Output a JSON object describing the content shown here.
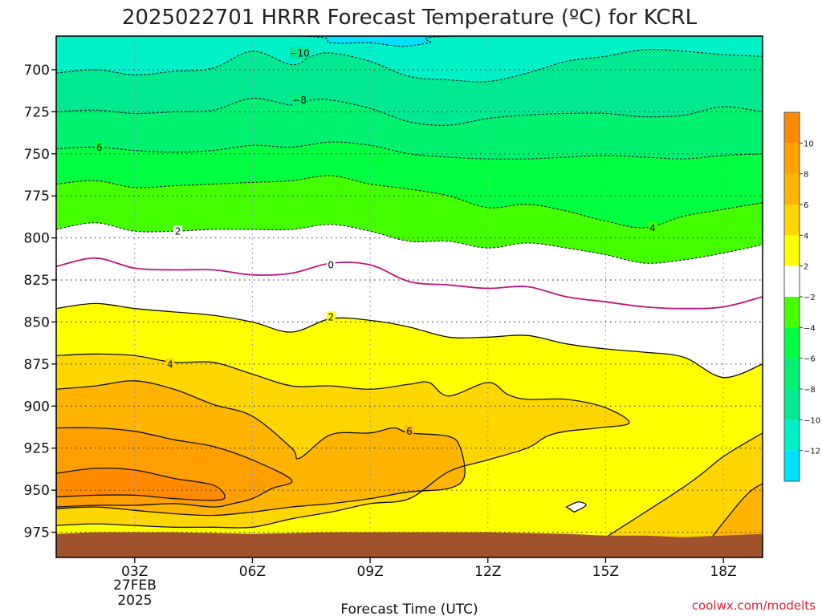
{
  "chart_data": {
    "type": "heatmap",
    "title": "2025022701 HRRR Forecast Temperature (ºC) for KCRL",
    "xlabel": "Forecast Time (UTC)",
    "ylabel": "",
    "x_ticks": [
      "03Z",
      "06Z",
      "09Z",
      "12Z",
      "15Z",
      "18Z"
    ],
    "x_date_label": [
      "27FEB",
      "2025"
    ],
    "y_ticks": [
      "700",
      "725",
      "750",
      "775",
      "800",
      "825",
      "850",
      "875",
      "900",
      "925",
      "950",
      "975"
    ],
    "y_range_hPa": [
      680,
      990
    ],
    "x_range_hours": [
      1,
      19
    ],
    "y_inverted": true,
    "grid": true,
    "colorbar": {
      "labels": [
        "10",
        "8",
        "6",
        "4",
        "2",
        "−2",
        "−4",
        "−6",
        "−8",
        "−10",
        "−12"
      ],
      "bands": [
        {
          "from": 10,
          "to": 12,
          "color": "#ff8a00"
        },
        {
          "from": 8,
          "to": 10,
          "color": "#ff9f00"
        },
        {
          "from": 6,
          "to": 8,
          "color": "#ffb400"
        },
        {
          "from": 4,
          "to": 6,
          "color": "#ffd600"
        },
        {
          "from": 2,
          "to": 4,
          "color": "#ffff00"
        },
        {
          "from": -2,
          "to": 2,
          "color": "#ffffff"
        },
        {
          "from": -4,
          "to": -2,
          "color": "#44ff00"
        },
        {
          "from": -6,
          "to": -4,
          "color": "#00ff40"
        },
        {
          "from": -8,
          "to": -6,
          "color": "#00f070"
        },
        {
          "from": -10,
          "to": -8,
          "color": "#00e890"
        },
        {
          "from": -12,
          "to": -10,
          "color": "#00f0c8"
        },
        {
          "from": -14,
          "to": -12,
          "color": "#00e0ff"
        }
      ]
    },
    "contours": [
      {
        "value": -12,
        "label": "",
        "points": [
          [
            1,
            680
          ],
          [
            7.2,
            680
          ],
          [
            8,
            684
          ],
          [
            9,
            684
          ],
          [
            9.8,
            686
          ],
          [
            10.5,
            684
          ],
          [
            11.2,
            680
          ],
          [
            19,
            680
          ]
        ]
      },
      {
        "value": -10,
        "label": "−10",
        "label_at": [
          7.2,
          690
        ],
        "points": [
          [
            1,
            702
          ],
          [
            2,
            700
          ],
          [
            3,
            703
          ],
          [
            4,
            701
          ],
          [
            5,
            699
          ],
          [
            6,
            689
          ],
          [
            7,
            697
          ],
          [
            7.5,
            692
          ],
          [
            8,
            690
          ],
          [
            9,
            695
          ],
          [
            10,
            704
          ],
          [
            11,
            706
          ],
          [
            12,
            707
          ],
          [
            13,
            702
          ],
          [
            14,
            695
          ],
          [
            15,
            692
          ],
          [
            16,
            688
          ],
          [
            17,
            689
          ],
          [
            18,
            691
          ],
          [
            19,
            692
          ]
        ]
      },
      {
        "value": -8,
        "label": "−8",
        "label_at": [
          7.2,
          718
        ],
        "points": [
          [
            1,
            725
          ],
          [
            2,
            724
          ],
          [
            3,
            726
          ],
          [
            4,
            725
          ],
          [
            5,
            724
          ],
          [
            6,
            717
          ],
          [
            7,
            721
          ],
          [
            7.5,
            718
          ],
          [
            8,
            718
          ],
          [
            9,
            723
          ],
          [
            10,
            731
          ],
          [
            11,
            733
          ],
          [
            12,
            729
          ],
          [
            13,
            727
          ],
          [
            14,
            726
          ],
          [
            15,
            726
          ],
          [
            16,
            728
          ],
          [
            17,
            727
          ],
          [
            18,
            722
          ],
          [
            19,
            725
          ]
        ]
      },
      {
        "value": -6,
        "label": "6",
        "label_at": [
          2.1,
          746
        ],
        "points": [
          [
            1,
            747
          ],
          [
            2,
            746
          ],
          [
            3,
            748
          ],
          [
            4,
            749
          ],
          [
            5,
            748
          ],
          [
            6,
            745
          ],
          [
            7,
            746
          ],
          [
            8,
            743
          ],
          [
            9,
            745
          ],
          [
            10,
            750
          ],
          [
            11,
            752
          ],
          [
            12,
            753
          ],
          [
            13,
            753
          ],
          [
            14,
            752
          ],
          [
            15,
            751
          ],
          [
            16,
            752
          ],
          [
            17,
            753
          ],
          [
            18,
            751
          ],
          [
            19,
            750
          ]
        ]
      },
      {
        "value": -4,
        "label": "4",
        "label_at": [
          16.2,
          794
        ],
        "points": [
          [
            1,
            768
          ],
          [
            2,
            766
          ],
          [
            3,
            770
          ],
          [
            4,
            769
          ],
          [
            5,
            768
          ],
          [
            6,
            767
          ],
          [
            7,
            766
          ],
          [
            8,
            763
          ],
          [
            9,
            768
          ],
          [
            10,
            771
          ],
          [
            11,
            775
          ],
          [
            12,
            782
          ],
          [
            13,
            780
          ],
          [
            14,
            784
          ],
          [
            15,
            790
          ],
          [
            16,
            794
          ],
          [
            17,
            787
          ],
          [
            18,
            783
          ],
          [
            19,
            779
          ]
        ]
      },
      {
        "value": -2,
        "label": "2",
        "label_at": [
          4.1,
          796
        ],
        "points": [
          [
            1,
            795
          ],
          [
            2,
            791
          ],
          [
            3,
            796
          ],
          [
            4,
            796
          ],
          [
            5,
            795
          ],
          [
            6,
            795
          ],
          [
            7,
            795
          ],
          [
            8,
            792
          ],
          [
            9,
            796
          ],
          [
            10,
            802
          ],
          [
            11,
            802
          ],
          [
            12,
            806
          ],
          [
            13,
            803
          ],
          [
            14,
            806
          ],
          [
            15,
            810
          ],
          [
            16,
            815
          ],
          [
            17,
            813
          ],
          [
            18,
            809
          ],
          [
            19,
            804
          ]
        ]
      },
      {
        "value": 0,
        "label": "0",
        "label_at": [
          8.0,
          816
        ],
        "points": [
          [
            1,
            817
          ],
          [
            2,
            812
          ],
          [
            3,
            818
          ],
          [
            4,
            819
          ],
          [
            5,
            819
          ],
          [
            6,
            822
          ],
          [
            7,
            821
          ],
          [
            8,
            815
          ],
          [
            9,
            816
          ],
          [
            10,
            826
          ],
          [
            11,
            828
          ],
          [
            12,
            830
          ],
          [
            13,
            829
          ],
          [
            14,
            835
          ],
          [
            15,
            838
          ],
          [
            16,
            841
          ],
          [
            17,
            842
          ],
          [
            18,
            841
          ],
          [
            19,
            835
          ]
        ]
      },
      {
        "value": 2,
        "label": "2",
        "label_at": [
          8.0,
          847
        ],
        "points": [
          [
            1,
            842
          ],
          [
            2,
            839
          ],
          [
            3,
            842
          ],
          [
            4,
            844
          ],
          [
            5,
            846
          ],
          [
            6,
            850
          ],
          [
            7,
            856
          ],
          [
            8,
            848
          ],
          [
            9,
            849
          ],
          [
            10,
            853
          ],
          [
            11,
            859
          ],
          [
            12,
            859
          ],
          [
            13,
            858
          ],
          [
            14,
            863
          ],
          [
            15,
            866
          ],
          [
            16,
            868
          ],
          [
            17,
            871
          ],
          [
            18,
            883
          ],
          [
            19,
            875
          ]
        ]
      },
      {
        "value": 4,
        "label": "4",
        "label_at": [
          3.9,
          875
        ],
        "points": [
          [
            1,
            870
          ],
          [
            2,
            869
          ],
          [
            3,
            870
          ],
          [
            4,
            874
          ],
          [
            5,
            874
          ],
          [
            6,
            881
          ],
          [
            7,
            888
          ],
          [
            8,
            888
          ],
          [
            9,
            890
          ],
          [
            10,
            887
          ],
          [
            10.5,
            886
          ],
          [
            11,
            894
          ],
          [
            12,
            886
          ],
          [
            12.5,
            893
          ],
          [
            13,
            896
          ],
          [
            14,
            896
          ],
          [
            15,
            901
          ],
          [
            15.6,
            910
          ],
          [
            14.8,
            913
          ],
          [
            14,
            915
          ],
          [
            13.5,
            918
          ],
          [
            13,
            925
          ],
          [
            12,
            932
          ],
          [
            11,
            939
          ],
          [
            10,
            955
          ],
          [
            9,
            958
          ],
          [
            8,
            963
          ],
          [
            7,
            967
          ],
          [
            6,
            972
          ],
          [
            5,
            972
          ],
          [
            4,
            972
          ],
          [
            3,
            971
          ],
          [
            2,
            970
          ],
          [
            1,
            971
          ]
        ]
      },
      {
        "value": 6,
        "label": "6",
        "label_at": [
          10.0,
          915
        ],
        "points": [
          [
            1,
            890
          ],
          [
            2,
            888
          ],
          [
            3,
            885
          ],
          [
            4,
            890
          ],
          [
            5,
            899
          ],
          [
            6,
            906
          ],
          [
            7,
            925
          ],
          [
            7.2,
            931
          ],
          [
            8,
            917
          ],
          [
            9,
            916
          ],
          [
            9.6,
            913
          ],
          [
            10,
            916
          ],
          [
            11,
            918
          ],
          [
            11.3,
            925
          ],
          [
            11.4,
            942
          ],
          [
            11,
            949
          ],
          [
            10,
            951
          ],
          [
            9,
            955
          ],
          [
            8,
            958
          ],
          [
            7,
            960
          ],
          [
            6,
            963
          ],
          [
            5,
            965
          ],
          [
            4,
            964
          ],
          [
            3,
            962
          ],
          [
            2,
            960
          ],
          [
            1,
            961
          ]
        ]
      },
      {
        "value": 8,
        "label": "",
        "points": [
          [
            1,
            913
          ],
          [
            2,
            913
          ],
          [
            3,
            915
          ],
          [
            4,
            920
          ],
          [
            5,
            924
          ],
          [
            6,
            932
          ],
          [
            7,
            944
          ],
          [
            6.5,
            949
          ],
          [
            6,
            955
          ],
          [
            5.5,
            958
          ],
          [
            5,
            960
          ],
          [
            4,
            958
          ],
          [
            3,
            959
          ],
          [
            2,
            959
          ],
          [
            1,
            960
          ]
        ]
      },
      {
        "value": 10,
        "label": "",
        "points": [
          [
            1,
            940
          ],
          [
            2,
            937
          ],
          [
            3,
            938
          ],
          [
            4,
            943
          ],
          [
            5,
            947
          ],
          [
            5.3,
            954
          ],
          [
            5,
            956
          ],
          [
            4,
            955
          ],
          [
            3,
            953
          ],
          [
            2,
            953
          ],
          [
            1,
            954
          ]
        ]
      }
    ],
    "warm_surface_contours": [
      {
        "value": 4,
        "points": [
          [
            14.2,
            990
          ],
          [
            17,
            948
          ],
          [
            18,
            930
          ],
          [
            19,
            916
          ]
        ]
      },
      {
        "value": 6,
        "points": [
          [
            17.3,
            990
          ],
          [
            18.5,
            955
          ],
          [
            19,
            946
          ]
        ]
      },
      {
        "value": 8,
        "points": [
          [
            18.6,
            990
          ],
          [
            19,
            980
          ]
        ]
      }
    ],
    "closed_contours": [
      {
        "value": 2,
        "points": [
          [
            14.0,
            960
          ],
          [
            14.3,
            957
          ],
          [
            14.5,
            959
          ],
          [
            14.2,
            963
          ]
        ]
      }
    ],
    "ground": {
      "color": "#a0522d",
      "top": [
        [
          1,
          976
        ],
        [
          2,
          975
        ],
        [
          4,
          975
        ],
        [
          6,
          976
        ],
        [
          8,
          975
        ],
        [
          10,
          975
        ],
        [
          12,
          975
        ],
        [
          14,
          976
        ],
        [
          15,
          977
        ],
        [
          16,
          977
        ],
        [
          17,
          978
        ],
        [
          18,
          977
        ],
        [
          19,
          976
        ]
      ]
    }
  },
  "watermark": "coolwx.com/modelts"
}
